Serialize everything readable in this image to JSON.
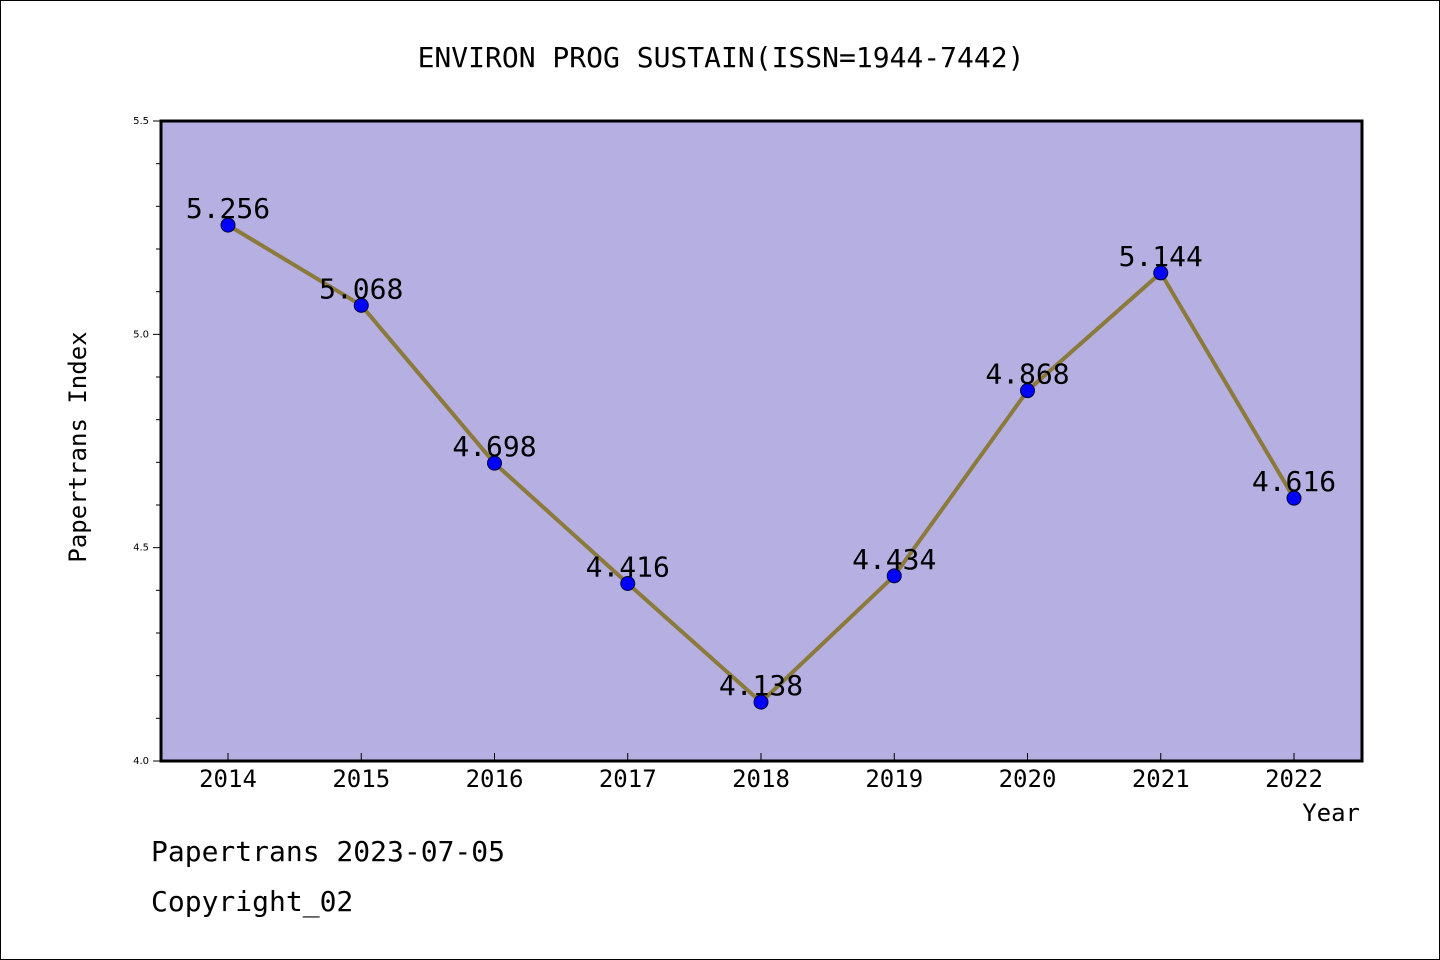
{
  "chart_data": {
    "type": "line",
    "title": "ENVIRON PROG SUSTAIN(ISSN=1944-7442)",
    "xlabel": "Year",
    "ylabel": "Papertrans Index",
    "categories": [
      "2014",
      "2015",
      "2016",
      "2017",
      "2018",
      "2019",
      "2020",
      "2021",
      "2022"
    ],
    "series": [
      {
        "values": [
          5.256,
          5.068,
          4.698,
          4.416,
          4.138,
          4.434,
          4.868,
          5.144,
          4.616
        ],
        "labels": [
          "5.256",
          "5.068",
          "4.698",
          "4.416",
          "4.138",
          "4.434",
          "4.868",
          "5.144",
          "4.616"
        ]
      }
    ],
    "ylim": [
      4.0,
      5.5
    ],
    "yticks": [
      "4.0",
      "4.5",
      "5.0",
      "5.5"
    ],
    "grid": false,
    "colors": {
      "plot_background": "#b5afe2",
      "line": "#8b7a3a",
      "marker": "#0000ff"
    }
  },
  "footer": {
    "line1": "Papertrans 2023-07-05",
    "line2": "Copyright_02"
  }
}
